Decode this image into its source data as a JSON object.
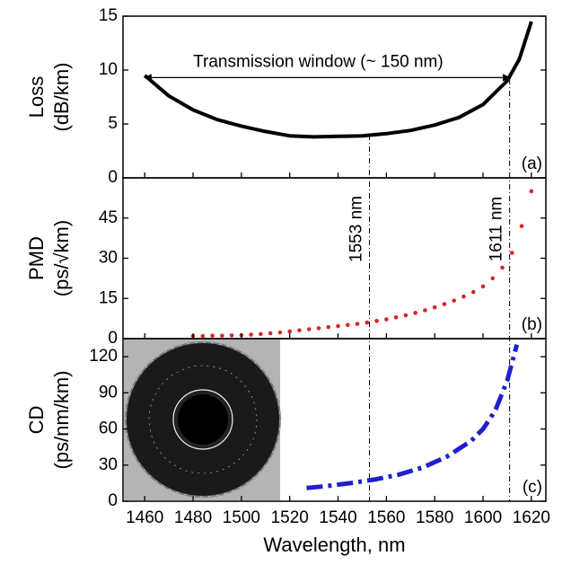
{
  "chart_data": [
    {
      "type": "line",
      "ylabel": [
        "Loss",
        "(dB/km)"
      ],
      "panel_label": "(a)",
      "color": "#000000",
      "style": "solid",
      "xlim": [
        1451,
        1626
      ],
      "ylim": [
        0,
        15
      ],
      "yticks": [
        0,
        5,
        10,
        15
      ],
      "x": [
        1460,
        1470,
        1480,
        1490,
        1500,
        1510,
        1520,
        1530,
        1540,
        1550,
        1560,
        1570,
        1580,
        1590,
        1600,
        1610,
        1615,
        1620
      ],
      "values": [
        9.5,
        7.6,
        6.3,
        5.4,
        4.8,
        4.3,
        3.9,
        3.8,
        3.85,
        3.9,
        4.1,
        4.4,
        4.9,
        5.6,
        6.8,
        9.0,
        11.0,
        14.5
      ],
      "span": {
        "label": "Transmission window (~ 150 nm)",
        "from": 1460,
        "to": 1611,
        "y": 9.3
      }
    },
    {
      "type": "scatter",
      "ylabel": [
        "PMD",
        "(ps/√km)"
      ],
      "panel_label": "(b)",
      "color": "#d62728",
      "xlim": [
        1451,
        1626
      ],
      "ylim": [
        0,
        60
      ],
      "yticks": [
        0,
        15,
        30,
        45
      ],
      "x": [
        1480,
        1484,
        1488,
        1492,
        1496,
        1500,
        1504,
        1508,
        1512,
        1516,
        1520,
        1524,
        1528,
        1532,
        1536,
        1540,
        1544,
        1548,
        1552,
        1556,
        1560,
        1564,
        1568,
        1572,
        1576,
        1580,
        1584,
        1588,
        1592,
        1596,
        1600,
        1604,
        1608,
        1612,
        1616,
        1620
      ],
      "values": [
        1.0,
        1.0,
        1.1,
        1.1,
        1.2,
        1.3,
        1.5,
        1.7,
        2.0,
        2.3,
        2.7,
        3.1,
        3.5,
        3.9,
        4.3,
        4.7,
        5.1,
        5.5,
        6.0,
        6.6,
        7.2,
        7.9,
        8.7,
        9.6,
        10.6,
        11.7,
        12.9,
        14.2,
        15.7,
        17.4,
        19.5,
        22.5,
        26.5,
        32,
        42,
        55
      ],
      "vlines": [
        {
          "value": 1553,
          "label": "1553 nm"
        },
        {
          "value": 1611,
          "label": "1611 nm"
        }
      ]
    },
    {
      "type": "line",
      "ylabel": [
        "CD",
        "(ps/nm/km)"
      ],
      "panel_label": "(c)",
      "color": "#1f1fd0",
      "style": "dashdot",
      "xlim": [
        1451,
        1626
      ],
      "ylim": [
        0,
        135
      ],
      "yticks": [
        0,
        30,
        60,
        90,
        120
      ],
      "xticks": [
        1460,
        1480,
        1500,
        1520,
        1540,
        1560,
        1580,
        1600,
        1620
      ],
      "xlabel": "Wavelength, nm",
      "x": [
        1527,
        1535,
        1545,
        1555,
        1565,
        1575,
        1585,
        1595,
        1600,
        1605,
        1610,
        1614
      ],
      "values": [
        11,
        12.5,
        15,
        18,
        22,
        28,
        37,
        50,
        60,
        75,
        100,
        130
      ]
    }
  ]
}
